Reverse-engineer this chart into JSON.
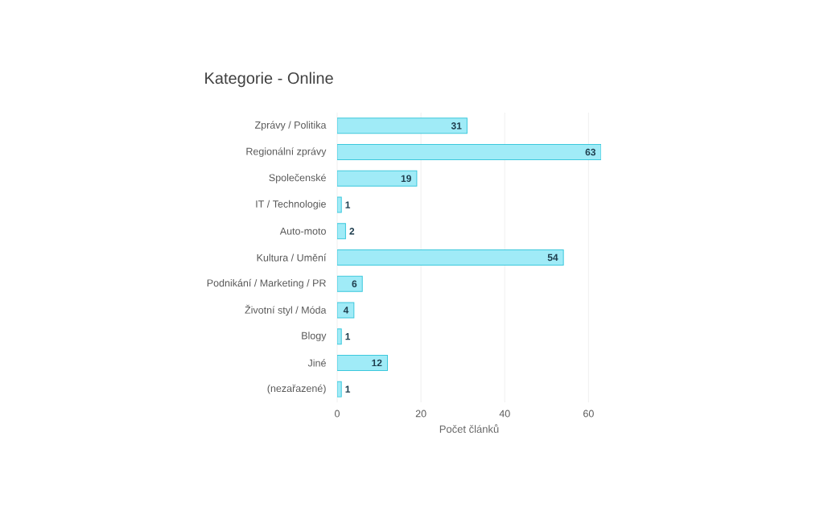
{
  "chart_data": {
    "type": "bar",
    "orientation": "horizontal",
    "title": "Kategorie - Online",
    "xlabel": "Počet článků",
    "categories": [
      "Zprávy / Politika",
      "Regionální zprávy",
      "Společenské",
      "IT / Technologie",
      "Auto-moto",
      "Kultura / Umění",
      "Podnikání / Marketing / PR",
      "Životní styl / Móda",
      "Blogy",
      "Jiné",
      "(nezařazené)"
    ],
    "values": [
      31,
      63,
      19,
      1,
      2,
      54,
      6,
      4,
      1,
      12,
      1
    ],
    "color": "#a0ebf7",
    "xlim": [
      0,
      63
    ],
    "xticks": [
      0,
      20,
      40,
      60
    ],
    "grid": "x",
    "data_labels": true
  }
}
